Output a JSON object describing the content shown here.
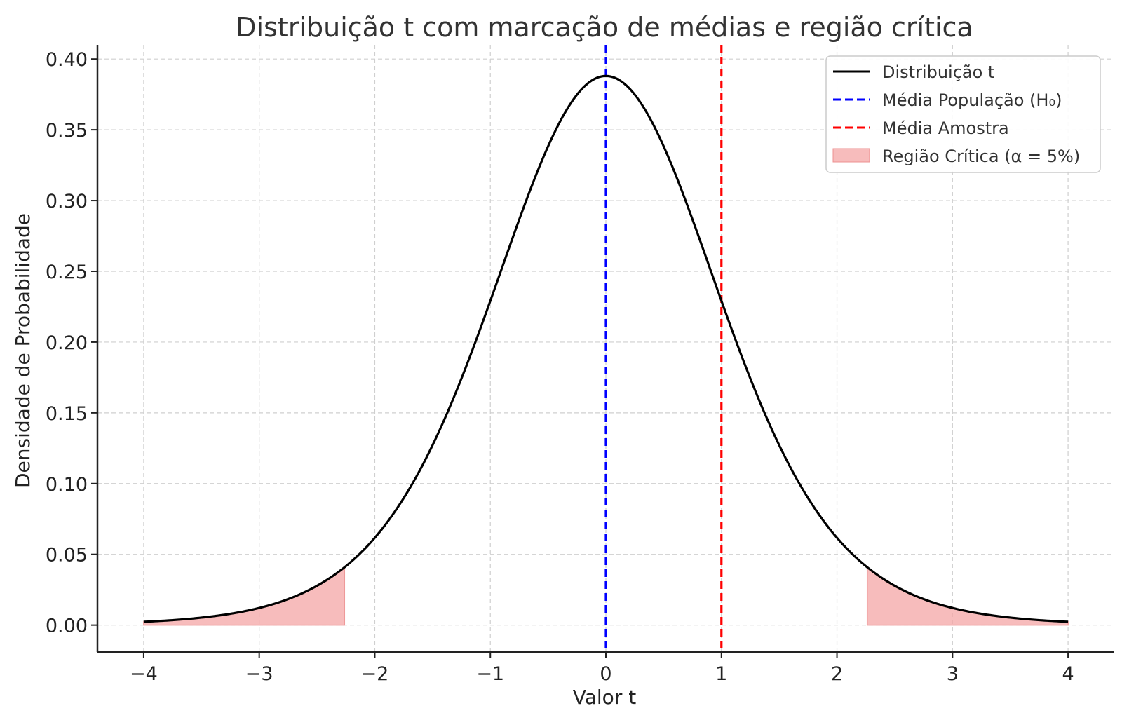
{
  "chart_data": {
    "type": "line",
    "title": "Distribuição t com marcação de médias e região crítica",
    "xlabel": "Valor t",
    "ylabel": "Densidade de Probabilidade",
    "xlim": [
      -4.4,
      4.4
    ],
    "ylim": [
      -0.019,
      0.41
    ],
    "x_ticks": [
      -4,
      -3,
      -2,
      -1,
      0,
      1,
      2,
      3,
      4
    ],
    "x_tick_labels": [
      "−4",
      "−3",
      "−2",
      "−1",
      "0",
      "1",
      "2",
      "3",
      "4"
    ],
    "y_ticks": [
      0.0,
      0.05,
      0.1,
      0.15,
      0.2,
      0.25,
      0.3,
      0.35,
      0.4
    ],
    "y_tick_labels": [
      "0.00",
      "0.05",
      "0.10",
      "0.15",
      "0.20",
      "0.25",
      "0.30",
      "0.35",
      "0.40"
    ],
    "grid": true,
    "legend_position": "top-right",
    "series": [
      {
        "name": "Distribuição t",
        "kind": "curve",
        "color": "#000000",
        "degrees_of_freedom": 9,
        "x": [
          -4.0,
          -3.5,
          -3.0,
          -2.5,
          -2.262,
          -2.0,
          -1.5,
          -1.0,
          -0.5,
          0.0,
          0.5,
          1.0,
          1.5,
          2.0,
          2.262,
          2.5,
          3.0,
          3.5,
          4.0
        ],
        "y": [
          0.0021,
          0.0052,
          0.0114,
          0.0284,
          0.041,
          0.0611,
          0.1239,
          0.2302,
          0.3431,
          0.388,
          0.3431,
          0.2302,
          0.1239,
          0.0611,
          0.041,
          0.0284,
          0.0114,
          0.0052,
          0.0021
        ]
      },
      {
        "name": "Média População (H₀)",
        "kind": "vline",
        "x": 0,
        "color": "#0000ff",
        "style": "dashed"
      },
      {
        "name": "Média Amostra",
        "kind": "vline",
        "x": 1,
        "color": "#ff0000",
        "style": "dashed"
      },
      {
        "name": "Região Crítica (α = 5%)",
        "kind": "fill",
        "color": "#f4a5a5",
        "ranges": [
          [
            -4,
            -2.262
          ],
          [
            2.262,
            4
          ]
        ]
      }
    ]
  }
}
